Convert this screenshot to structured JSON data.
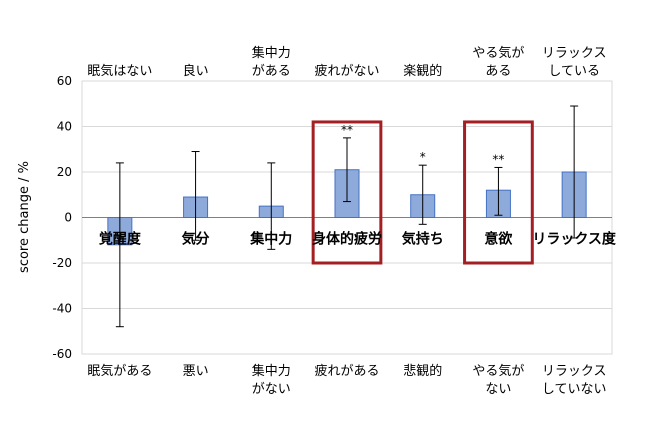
{
  "chart_data": {
    "type": "bar",
    "title": "",
    "xlabel": "",
    "ylabel": "score change / %",
    "ylim": [
      -60,
      60
    ],
    "ytick_step": 20,
    "yticks": [
      "60",
      "40",
      "20",
      "0",
      "-20",
      "-40",
      "-60"
    ],
    "grid": true,
    "bar_color": "#8eaadb",
    "bar_edge": "#4472c4",
    "highlight_color": "#a31f24",
    "categories": [
      {
        "name": "覚醒度",
        "value": -12,
        "err_low": -48,
        "err_high": 24,
        "top_label": [
          "眠気はない"
        ],
        "bottom_label": [
          "眠気がある"
        ],
        "sig": "",
        "highlight": false
      },
      {
        "name": "気分",
        "value": 9,
        "err_low": -10,
        "err_high": 29,
        "top_label": [
          "良い"
        ],
        "bottom_label": [
          "悪い"
        ],
        "sig": "",
        "highlight": false
      },
      {
        "name": "集中力",
        "value": 5,
        "err_low": -14,
        "err_high": 24,
        "top_label": [
          "集中力",
          "がある"
        ],
        "bottom_label": [
          "集中力",
          "がない"
        ],
        "sig": "",
        "highlight": false
      },
      {
        "name": "身体的疲労",
        "value": 21,
        "err_low": 7,
        "err_high": 35,
        "top_label": [
          "疲れがない"
        ],
        "bottom_label": [
          "疲れがある"
        ],
        "sig": "**",
        "highlight": true
      },
      {
        "name": "気持ち",
        "value": 10,
        "err_low": -3,
        "err_high": 23,
        "top_label": [
          "楽観的"
        ],
        "bottom_label": [
          "悲観的"
        ],
        "sig": "*",
        "highlight": false
      },
      {
        "name": "意欲",
        "value": 12,
        "err_low": 1,
        "err_high": 22,
        "top_label": [
          "やる気が",
          "ある"
        ],
        "bottom_label": [
          "やる気が",
          "ない"
        ],
        "sig": "**",
        "highlight": true
      },
      {
        "name": "リラックス度",
        "value": 20,
        "err_low": -9,
        "err_high": 49,
        "top_label": [
          "リラックス",
          "している"
        ],
        "bottom_label": [
          "リラックス",
          "していない"
        ],
        "sig": "",
        "highlight": false
      }
    ]
  }
}
